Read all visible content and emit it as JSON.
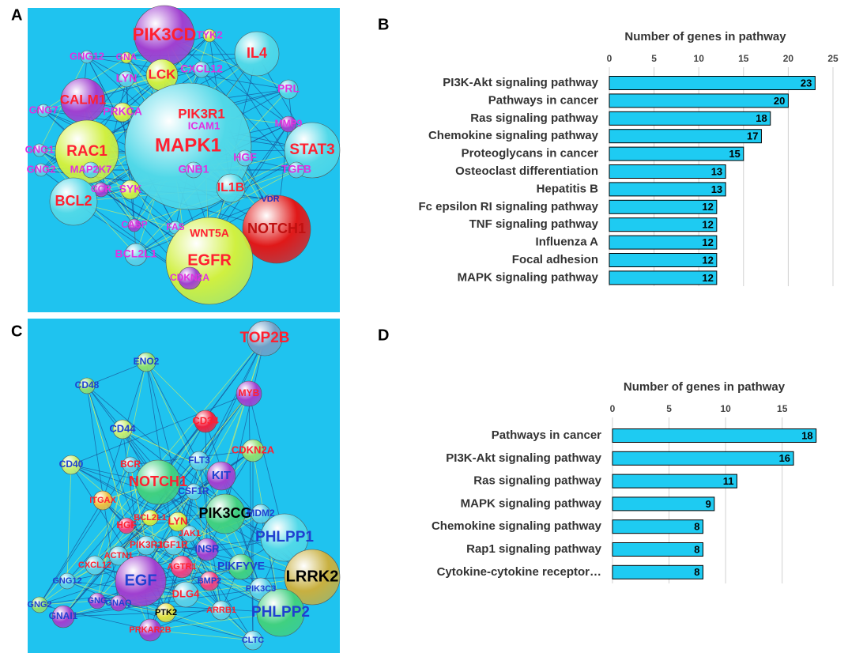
{
  "panels": {
    "a": "A",
    "b": "B",
    "c": "C",
    "d": "D"
  },
  "networks": [
    {
      "nodes": [
        "PIK3CD",
        "TYK2",
        "IL4",
        "GNA",
        "GNG12",
        "LYN",
        "LCK",
        "CXCL12",
        "PRL",
        "CALM1",
        "PRKCA",
        "PIK3R1",
        "ICAM1",
        "MMP9",
        "GNG7",
        "MAPK1",
        "RAC1",
        "STAT3",
        "GNG1",
        "GNG2",
        "MAP2K7",
        "HGF",
        "GNB1",
        "TGFB",
        "IL1B",
        "CCR",
        "SYK",
        "BCL2",
        "VDR",
        "NOTCH1",
        "CASP",
        "FAS",
        "WNT5A",
        "BCL2L1",
        "EGFR",
        "CDKN2A"
      ]
    },
    {
      "nodes": [
        "TOP2B",
        "ENO2",
        "MYB",
        "CD48",
        "CD44",
        "CD34",
        "CDKN2A",
        "CD40",
        "BCR",
        "NOTCH1",
        "FLT3",
        "KIT",
        "CSF1R",
        "PIK3CG",
        "MDM2",
        "PHLPP1",
        "ITGAX",
        "HGF",
        "BCL2L1",
        "LYN",
        "JAK1",
        "IGF1R",
        "PIK3R1",
        "ACTN1",
        "INSR",
        "AGTR1",
        "CXCL12",
        "EGF",
        "BMP2",
        "PIKFYVE",
        "LRRK2",
        "PIK3C3",
        "GNG12",
        "GNG",
        "GNAQ",
        "DLG4",
        "PTK2",
        "ARRB1",
        "PHLPP2",
        "GNG2",
        "GNAI1",
        "PRKAR2B",
        "CLTC"
      ]
    }
  ],
  "chart_data": [
    {
      "type": "bar",
      "orientation": "horizontal",
      "title": "Number of  genes in pathway",
      "categories": [
        "PI3K-Akt signaling pathway",
        "Pathways in cancer",
        "Ras signaling pathway",
        "Chemokine signaling pathway",
        "Proteoglycans in cancer",
        "Osteoclast differentiation",
        "Hepatitis B",
        "Fc epsilon RI signaling pathway",
        "TNF signaling pathway",
        "Influenza A",
        "Focal adhesion",
        "MAPK signaling pathway"
      ],
      "values": [
        23,
        20,
        18,
        17,
        15,
        13,
        13,
        12,
        12,
        12,
        12,
        12
      ],
      "color": "#1ecbf2",
      "xlim": [
        0,
        25
      ],
      "xticks": [
        0,
        5,
        10,
        15,
        20,
        25
      ],
      "grid": true
    },
    {
      "type": "bar",
      "orientation": "horizontal",
      "title": "Number of  genes in pathway",
      "categories": [
        "Pathways in cancer",
        "PI3K-Akt signaling pathway",
        "Ras signaling pathway",
        "MAPK signaling pathway",
        "Chemokine signaling pathway",
        "Rap1 signaling pathway",
        "Cytokine-cytokine receptor…"
      ],
      "values": [
        18,
        16,
        11,
        9,
        8,
        8,
        8
      ],
      "color": "#1ecbf2",
      "xlim": [
        0,
        19
      ],
      "xticks": [
        0,
        5,
        10,
        15
      ],
      "grid": true
    }
  ]
}
